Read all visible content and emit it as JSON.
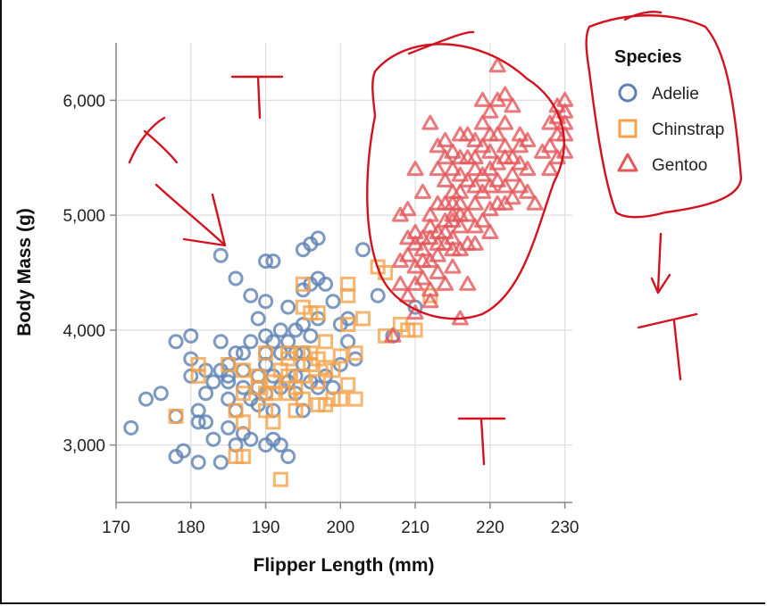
{
  "chart_data": {
    "type": "scatter",
    "xlabel": "Flipper Length (mm)",
    "ylabel": "Body Mass (g)",
    "xlim": [
      170,
      231
    ],
    "ylim": [
      2500,
      6500
    ],
    "x_ticks": [
      170,
      180,
      190,
      200,
      210,
      220,
      230
    ],
    "x_tick_labels": [
      "170",
      "180",
      "190",
      "200",
      "210",
      "220",
      "230"
    ],
    "y_ticks": [
      3000,
      4000,
      5000,
      6000
    ],
    "y_tick_labels": [
      "3,000",
      "4,000",
      "5,000",
      "6,000"
    ],
    "grid": true,
    "legend": {
      "title": "Species",
      "placement": "right"
    },
    "series": [
      {
        "name": "Adelie",
        "marker": "circle",
        "color": "#5b80b2",
        "points": [
          [
            172,
            3150
          ],
          [
            174,
            3400
          ],
          [
            176,
            3450
          ],
          [
            178,
            2900
          ],
          [
            178,
            3250
          ],
          [
            178,
            3900
          ],
          [
            179,
            2950
          ],
          [
            180,
            3750
          ],
          [
            180,
            3950
          ],
          [
            180,
            3600
          ],
          [
            181,
            3200
          ],
          [
            181,
            2850
          ],
          [
            181,
            3300
          ],
          [
            182,
            3450
          ],
          [
            182,
            3200
          ],
          [
            182,
            3650
          ],
          [
            183,
            3550
          ],
          [
            183,
            3050
          ],
          [
            184,
            2850
          ],
          [
            184,
            3900
          ],
          [
            184,
            3650
          ],
          [
            184,
            4650
          ],
          [
            185,
            3400
          ],
          [
            185,
            3600
          ],
          [
            185,
            3700
          ],
          [
            185,
            3150
          ],
          [
            185,
            3550
          ],
          [
            186,
            4450
          ],
          [
            186,
            3000
          ],
          [
            186,
            3300
          ],
          [
            186,
            3800
          ],
          [
            187,
            3500
          ],
          [
            187,
            3100
          ],
          [
            187,
            3800
          ],
          [
            187,
            3650
          ],
          [
            188,
            4300
          ],
          [
            188,
            3050
          ],
          [
            188,
            3400
          ],
          [
            188,
            3900
          ],
          [
            189,
            3500
          ],
          [
            189,
            4100
          ],
          [
            189,
            3600
          ],
          [
            189,
            3350
          ],
          [
            190,
            4250
          ],
          [
            190,
            3450
          ],
          [
            190,
            3700
          ],
          [
            190,
            3800
          ],
          [
            190,
            3000
          ],
          [
            190,
            3950
          ],
          [
            190,
            4600
          ],
          [
            191,
            3900
          ],
          [
            191,
            3300
          ],
          [
            191,
            3600
          ],
          [
            191,
            3050
          ],
          [
            191,
            4600
          ],
          [
            192,
            3500
          ],
          [
            192,
            3800
          ],
          [
            192,
            4000
          ],
          [
            192,
            3000
          ],
          [
            193,
            3900
          ],
          [
            193,
            3550
          ],
          [
            193,
            2900
          ],
          [
            193,
            4200
          ],
          [
            194,
            3600
          ],
          [
            194,
            4000
          ],
          [
            194,
            3800
          ],
          [
            194,
            3450
          ],
          [
            195,
            3700
          ],
          [
            195,
            3300
          ],
          [
            195,
            3800
          ],
          [
            195,
            4050
          ],
          [
            195,
            4350
          ],
          [
            195,
            4700
          ],
          [
            196,
            3950
          ],
          [
            196,
            3550
          ],
          [
            196,
            4400
          ],
          [
            196,
            4750
          ],
          [
            197,
            4100
          ],
          [
            197,
            3500
          ],
          [
            197,
            4450
          ],
          [
            197,
            4800
          ],
          [
            198,
            3600
          ],
          [
            198,
            4400
          ],
          [
            199,
            3500
          ],
          [
            199,
            4250
          ],
          [
            200,
            3700
          ],
          [
            200,
            4050
          ],
          [
            201,
            3900
          ],
          [
            201,
            4100
          ],
          [
            202,
            3750
          ],
          [
            203,
            4700
          ],
          [
            205,
            4300
          ],
          [
            207,
            3950
          ],
          [
            210,
            4200
          ]
        ]
      },
      {
        "name": "Chinstrap",
        "marker": "square",
        "color": "#f5a24b",
        "points": [
          [
            178,
            3250
          ],
          [
            181,
            3700
          ],
          [
            181,
            3600
          ],
          [
            185,
            3700
          ],
          [
            186,
            2900
          ],
          [
            186,
            3300
          ],
          [
            187,
            2900
          ],
          [
            187,
            3450
          ],
          [
            187,
            3650
          ],
          [
            187,
            3200
          ],
          [
            189,
            3500
          ],
          [
            189,
            3600
          ],
          [
            190,
            3450
          ],
          [
            190,
            3300
          ],
          [
            190,
            3800
          ],
          [
            191,
            3200
          ],
          [
            191,
            3450
          ],
          [
            191,
            3550
          ],
          [
            192,
            2700
          ],
          [
            192,
            3650
          ],
          [
            193,
            3750
          ],
          [
            193,
            3450
          ],
          [
            193,
            3800
          ],
          [
            193,
            3600
          ],
          [
            194,
            3500
          ],
          [
            194,
            3300
          ],
          [
            195,
            3800
          ],
          [
            195,
            3600
          ],
          [
            195,
            4400
          ],
          [
            195,
            4200
          ],
          [
            195,
            3400
          ],
          [
            196,
            3700
          ],
          [
            196,
            4150
          ],
          [
            196,
            3800
          ],
          [
            197,
            3550
          ],
          [
            197,
            3350
          ],
          [
            197,
            3750
          ],
          [
            197,
            4150
          ],
          [
            198,
            3675
          ],
          [
            198,
            3350
          ],
          [
            198,
            3900
          ],
          [
            199,
            3650
          ],
          [
            199,
            3400
          ],
          [
            200,
            3775
          ],
          [
            200,
            3400
          ],
          [
            201,
            4050
          ],
          [
            201,
            3525
          ],
          [
            201,
            4400
          ],
          [
            201,
            4300
          ],
          [
            202,
            3800
          ],
          [
            202,
            3400
          ],
          [
            203,
            4100
          ],
          [
            205,
            4550
          ],
          [
            206,
            3950
          ],
          [
            206,
            4500
          ],
          [
            208,
            4050
          ],
          [
            209,
            4000
          ],
          [
            210,
            4000
          ],
          [
            212,
            4300
          ]
        ]
      },
      {
        "name": "Gentoo",
        "marker": "triangle",
        "color": "#e4575b",
        "points": [
          [
            207,
            3950
          ],
          [
            208,
            4600
          ],
          [
            208,
            4400
          ],
          [
            208,
            5000
          ],
          [
            209,
            4300
          ],
          [
            209,
            4650
          ],
          [
            209,
            4800
          ],
          [
            209,
            5050
          ],
          [
            210,
            4400
          ],
          [
            210,
            4550
          ],
          [
            210,
            4750
          ],
          [
            210,
            4850
          ],
          [
            210,
            4150
          ],
          [
            210,
            5400
          ],
          [
            211,
            4450
          ],
          [
            211,
            4600
          ],
          [
            211,
            4700
          ],
          [
            211,
            4800
          ],
          [
            211,
            5200
          ],
          [
            212,
            4250
          ],
          [
            212,
            4350
          ],
          [
            212,
            4600
          ],
          [
            212,
            4800
          ],
          [
            212,
            4900
          ],
          [
            212,
            5000
          ],
          [
            212,
            5800
          ],
          [
            213,
            4500
          ],
          [
            213,
            4650
          ],
          [
            213,
            4750
          ],
          [
            213,
            4850
          ],
          [
            213,
            5100
          ],
          [
            213,
            5400
          ],
          [
            213,
            5600
          ],
          [
            214,
            4400
          ],
          [
            214,
            4750
          ],
          [
            214,
            4850
          ],
          [
            214,
            4950
          ],
          [
            214,
            5100
          ],
          [
            214,
            5300
          ],
          [
            214,
            5650
          ],
          [
            214,
            5500
          ],
          [
            215,
            4550
          ],
          [
            215,
            4700
          ],
          [
            215,
            4800
          ],
          [
            215,
            4950
          ],
          [
            215,
            5000
          ],
          [
            215,
            5100
          ],
          [
            215,
            5200
          ],
          [
            215,
            5400
          ],
          [
            215,
            5550
          ],
          [
            216,
            4100
          ],
          [
            216,
            4700
          ],
          [
            216,
            4900
          ],
          [
            216,
            5000
          ],
          [
            216,
            5100
          ],
          [
            216,
            5200
          ],
          [
            216,
            5350
          ],
          [
            216,
            5500
          ],
          [
            216,
            5700
          ],
          [
            217,
            4400
          ],
          [
            217,
            4750
          ],
          [
            217,
            5000
          ],
          [
            217,
            5300
          ],
          [
            217,
            5500
          ],
          [
            217,
            5700
          ],
          [
            218,
            4750
          ],
          [
            218,
            4900
          ],
          [
            218,
            5100
          ],
          [
            218,
            5250
          ],
          [
            218,
            5400
          ],
          [
            218,
            5500
          ],
          [
            218,
            5650
          ],
          [
            219,
            4950
          ],
          [
            219,
            5200
          ],
          [
            219,
            5350
          ],
          [
            219,
            5600
          ],
          [
            219,
            5800
          ],
          [
            219,
            6000
          ],
          [
            220,
            4850
          ],
          [
            220,
            5050
          ],
          [
            220,
            5250
          ],
          [
            220,
            5400
          ],
          [
            220,
            5550
          ],
          [
            220,
            5700
          ],
          [
            220,
            5900
          ],
          [
            221,
            5100
          ],
          [
            221,
            5300
          ],
          [
            221,
            5450
          ],
          [
            221,
            5700
          ],
          [
            221,
            6300
          ],
          [
            221,
            6000
          ],
          [
            222,
            5100
          ],
          [
            222,
            5250
          ],
          [
            222,
            5500
          ],
          [
            222,
            5600
          ],
          [
            222,
            5800
          ],
          [
            222,
            6050
          ],
          [
            223,
            5150
          ],
          [
            223,
            5350
          ],
          [
            223,
            5500
          ],
          [
            223,
            5950
          ],
          [
            224,
            5250
          ],
          [
            224,
            5450
          ],
          [
            224,
            5600
          ],
          [
            224,
            5700
          ],
          [
            225,
            5200
          ],
          [
            225,
            5400
          ],
          [
            225,
            5650
          ],
          [
            226,
            5100
          ],
          [
            227,
            5550
          ],
          [
            228,
            5400
          ],
          [
            228,
            5600
          ],
          [
            228,
            5800
          ],
          [
            229,
            5700
          ],
          [
            229,
            5950
          ],
          [
            229,
            5500
          ],
          [
            230,
            5550
          ],
          [
            230,
            5700
          ],
          [
            230,
            5800
          ],
          [
            230,
            6000
          ],
          [
            230,
            5900
          ],
          [
            229,
            5850
          ]
        ]
      }
    ]
  }
}
